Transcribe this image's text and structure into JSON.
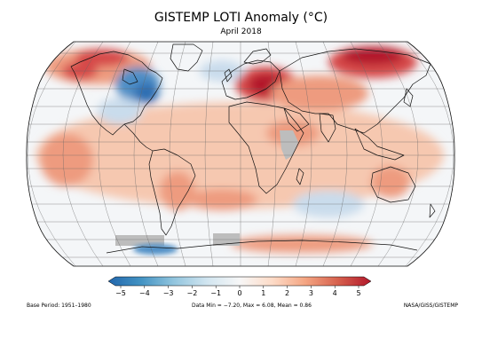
{
  "title": "GISTEMP LOTI Anomaly (°C)",
  "subtitle": "April 2018",
  "colorbar": {
    "ticks": [
      "−5",
      "−4",
      "−3",
      "−2",
      "−1",
      "0",
      "1",
      "2",
      "3",
      "4",
      "5"
    ],
    "stops": [
      "#2166ac",
      "#4393c3",
      "#92c5de",
      "#d1e5f0",
      "#f7f7f7",
      "#fddbc7",
      "#f4a582",
      "#d6604d",
      "#b2182b"
    ]
  },
  "colors": {
    "neutral": "#f4f6f8",
    "warm_light": "#f6c8b0",
    "warm": "#ee9b7f",
    "hot": "#d6484a",
    "very_hot": "#b2182b",
    "cool": "#c9dcec",
    "cold": "#4f8fc6",
    "very_cold": "#2f6eb2",
    "no_data": "#bdbdbd",
    "coast": "#111111",
    "grid": "#666666"
  },
  "footer": {
    "base_period": "Base Period: 1951–1980",
    "stats": "Data Min = −7.20, Max = 6.08, Mean = 0.86",
    "source": "NASA/GISS/GISTEMP"
  }
}
